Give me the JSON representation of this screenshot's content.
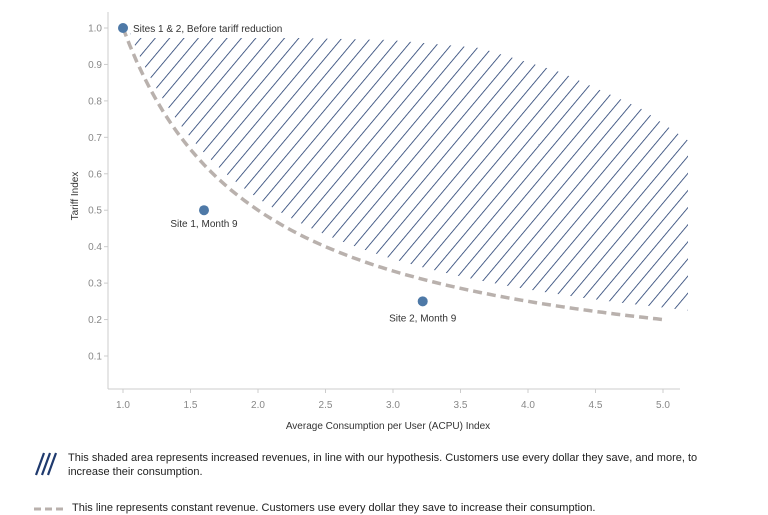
{
  "chart_data": {
    "type": "scatter",
    "xlabel": "Average Consumption per User (ACPU) Index",
    "ylabel": "Tariff Index",
    "xlim": [
      0.9,
      5.1
    ],
    "ylim": [
      0.0,
      1.05
    ],
    "xticks": [
      "1.0",
      "1.5",
      "2.0",
      "2.5",
      "3.0",
      "3.5",
      "4.0",
      "4.5",
      "5.0"
    ],
    "yticks": [
      "0.1",
      "0.2",
      "0.3",
      "0.4",
      "0.5",
      "0.6",
      "0.7",
      "0.8",
      "0.9",
      "1.0"
    ],
    "grid": false,
    "points": [
      {
        "label": "Sites 1 & 2, Before tariff reduction",
        "x": 1.0,
        "y": 1.0
      },
      {
        "label": "Site 1, Month 9",
        "x": 1.6,
        "y": 0.5
      },
      {
        "label": "Site 2, Month 9",
        "x": 3.22,
        "y": 0.25
      }
    ],
    "constant_revenue_curve": {
      "formula": "y = 1 / x",
      "x_range": [
        1.0,
        5.0
      ]
    },
    "colors": {
      "point": "#4e79a7",
      "hatch": "#1f3a6e",
      "curve": "#b9b1ad",
      "axis": "#cccccc",
      "tick_text": "#888888"
    }
  },
  "legend": {
    "hatch_text": "This shaded area represents increased revenues, in line with our hypothesis. Customers use every dollar they save, and more, to increase their consumption.",
    "dash_text": "This line represents constant revenue. Customers use every dollar they save to increase their consumption."
  }
}
